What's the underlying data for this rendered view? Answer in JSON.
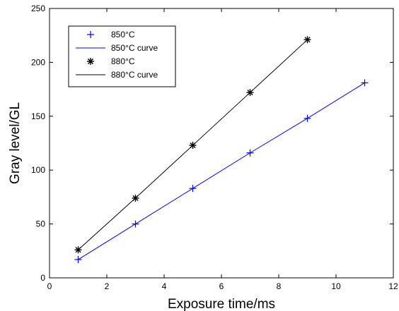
{
  "chart_data": {
    "type": "line",
    "xlabel": "Exposure time/ms",
    "ylabel": "Gray level/GL",
    "xlim": [
      0,
      12
    ],
    "ylim": [
      0,
      250
    ],
    "xticks": [
      0,
      2,
      4,
      6,
      8,
      10,
      12
    ],
    "yticks": [
      0,
      50,
      100,
      150,
      200,
      250
    ],
    "grid": false,
    "legend_position": "top-left",
    "series": [
      {
        "name": "850°C",
        "kind": "markers",
        "marker": "plus-icon",
        "color": "#0000ff",
        "x": [
          1,
          3,
          5,
          7,
          9,
          11
        ],
        "y": [
          17,
          50,
          83,
          116,
          148,
          181
        ]
      },
      {
        "name": "850°C curve",
        "kind": "line",
        "color": "#0000ff",
        "x": [
          1,
          3,
          5,
          7,
          9,
          11
        ],
        "y": [
          17,
          50,
          83,
          116,
          148,
          181
        ]
      },
      {
        "name": "880°C",
        "kind": "markers",
        "marker": "asterisk-icon",
        "color": "#000000",
        "x": [
          1,
          3,
          5,
          7,
          9
        ],
        "y": [
          26,
          74,
          123,
          172,
          221
        ]
      },
      {
        "name": "880°C curve",
        "kind": "line",
        "color": "#000000",
        "x": [
          1,
          3,
          5,
          7,
          9
        ],
        "y": [
          26,
          74,
          123,
          172,
          221
        ]
      }
    ]
  }
}
